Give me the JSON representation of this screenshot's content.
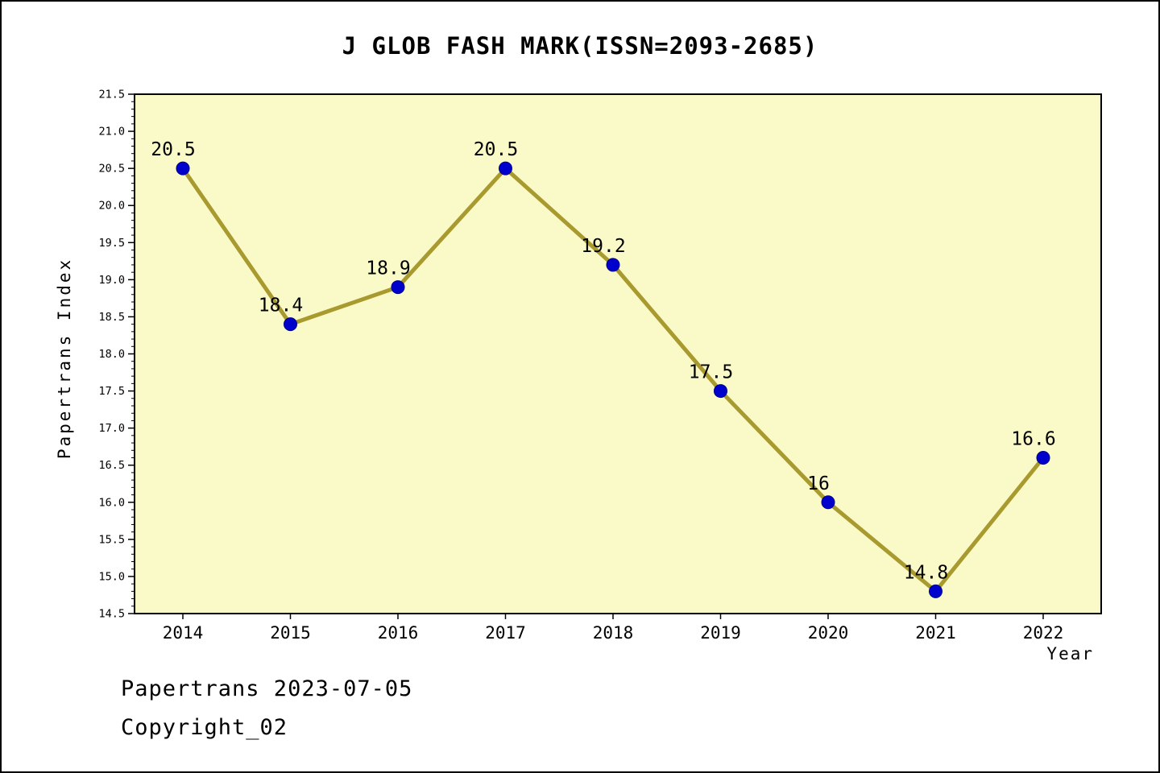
{
  "footer": {
    "date_line": "Papertrans 2023-07-05",
    "copyright_line": "Copyright_02"
  },
  "chart_data": {
    "type": "line",
    "title": "J GLOB FASH MARK(ISSN=2093-2685)",
    "xlabel": "Year",
    "ylabel": "Papertrans Index",
    "categories": [
      "2014",
      "2015",
      "2016",
      "2017",
      "2018",
      "2019",
      "2020",
      "2021",
      "2022"
    ],
    "values": [
      20.5,
      18.4,
      18.9,
      20.5,
      19.2,
      17.5,
      16,
      14.8,
      16.6
    ],
    "point_labels": [
      "20.5",
      "18.4",
      "18.9",
      "20.5",
      "19.2",
      "17.5",
      "16",
      "14.8",
      "16.6"
    ],
    "ylim": [
      14.5,
      21.5
    ],
    "ytick_step": 0.5,
    "yminor_step": 0.1,
    "grid": false,
    "legend": "none",
    "colors": {
      "plot_bg": "#FAFAC8",
      "line": "#A89A2F",
      "marker": "#0000CD",
      "marker_edge": "#00008B",
      "axis": "#000000"
    }
  }
}
